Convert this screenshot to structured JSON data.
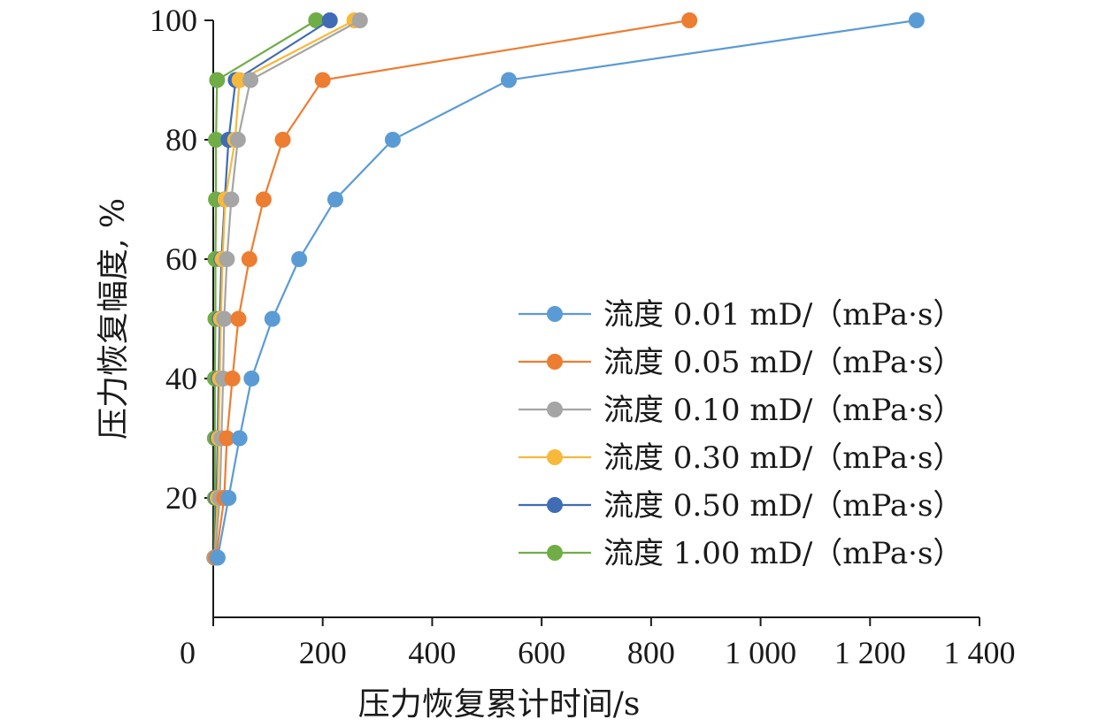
{
  "chart_data": {
    "type": "line",
    "title": "",
    "xlabel": "压力恢复累计时间/s",
    "ylabel": "压力恢复幅度, %",
    "xlim": [
      0,
      1400
    ],
    "ylim": [
      0,
      100
    ],
    "x_tick_values": [
      0,
      200,
      400,
      600,
      800,
      1000,
      1200,
      1400
    ],
    "x_tick_labels": [
      "0",
      "200",
      "400",
      "600",
      "800",
      "1 000",
      "1 200",
      "1 400"
    ],
    "y_tick_values": [
      20,
      40,
      60,
      80,
      100
    ],
    "y_tick_labels": [
      "20",
      "40",
      "60",
      "80",
      "100"
    ],
    "legend_position": "right",
    "grid": false,
    "y": [
      10,
      20,
      30,
      40,
      50,
      60,
      70,
      80,
      90,
      100
    ],
    "series": [
      {
        "name": "流度 0.01 mD/（mPa·s）",
        "color": "#5B9BD5",
        "x": [
          8,
          28,
          48,
          70,
          108,
          157,
          223,
          328,
          540,
          1285
        ]
      },
      {
        "name": "流度 0.05 mD/（mPa·s）",
        "color": "#ED7D31",
        "x": [
          5,
          20,
          25,
          35,
          46,
          66,
          92,
          127,
          200,
          870
        ]
      },
      {
        "name": "流度 0.10 mD/（mPa·s）",
        "color": "#A5A5A5",
        "x": [
          3,
          12,
          15,
          18,
          20,
          25,
          33,
          45,
          68,
          268
        ]
      },
      {
        "name": "流度 0.30 mD/（mPa·s）",
        "color": "#F6B93B",
        "x": [
          3,
          8,
          10,
          12,
          14,
          17,
          22,
          40,
          48,
          258
        ]
      },
      {
        "name": "流度 0.50 mD/（mPa·s）",
        "color": "#3F6CB5",
        "x": [
          3,
          6,
          8,
          10,
          12,
          15,
          21,
          28,
          41,
          213
        ]
      },
      {
        "name": "流度 1.00 mD/（mPa·s）",
        "color": "#70AD47",
        "x": [
          2,
          3,
          3,
          3,
          4,
          4,
          5,
          5,
          7,
          188
        ]
      }
    ]
  }
}
